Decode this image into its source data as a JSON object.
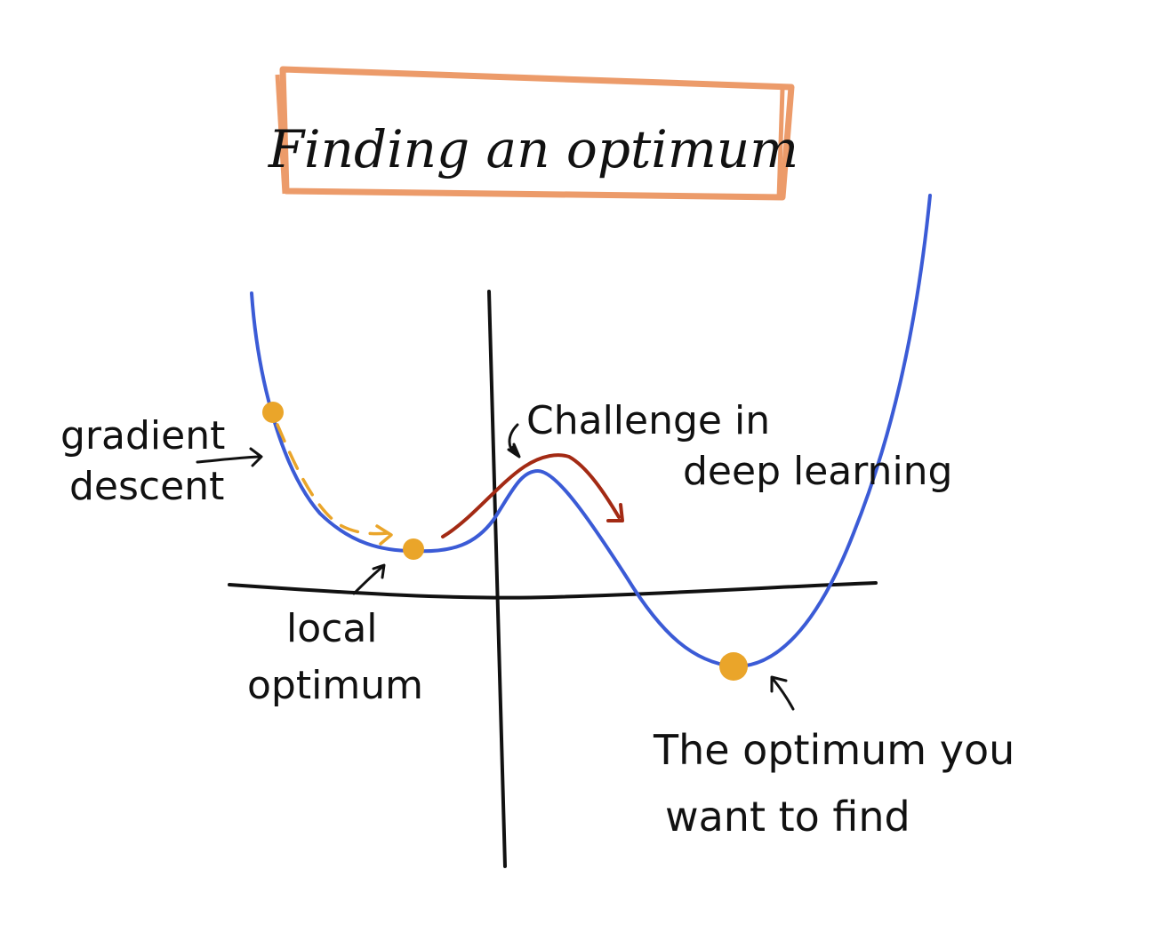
{
  "title": "Finding an optimum",
  "annotations": {
    "gradient_descent": [
      "gradient",
      "descent"
    ],
    "challenge": [
      "Challenge in",
      "deep learning"
    ],
    "local_optimum": [
      "local",
      "optimum"
    ],
    "global_optimum": [
      "The optimum you",
      "want to find"
    ]
  },
  "colors": {
    "title_box": "#ec9b6a",
    "curve": "#3b5bd6",
    "gradient_path": "#eaa52a",
    "optimum_dot": "#eaa52a",
    "challenge_path": "#a32a14",
    "ink": "#111111"
  }
}
